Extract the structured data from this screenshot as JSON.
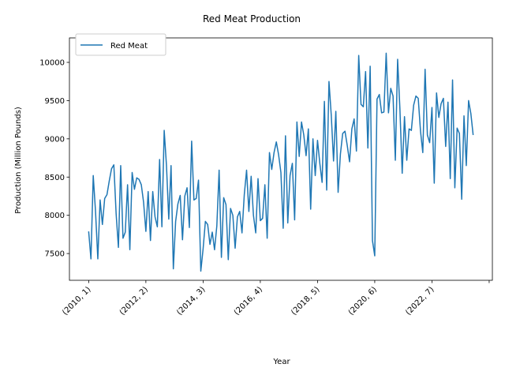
{
  "chart_data": {
    "type": "line",
    "title": "Red Meat Production",
    "xlabel": "Year",
    "ylabel": "Production (Million Pounds)",
    "x_start": "2010-01",
    "x_tick_labels": [
      "(2010, 1)",
      "(2012, 2)",
      "(2014, 3)",
      "(2016, 4)",
      "(2018, 5)",
      "(2020, 6)",
      "(2022, 7)",
      ""
    ],
    "x_tick_months": [
      "2010-01",
      "2012-02",
      "2014-03",
      "2016-04",
      "2018-05",
      "2020-06",
      "2022-07",
      "2024-08"
    ],
    "ylim": [
      7150,
      10320
    ],
    "y_ticks": [
      7500,
      8000,
      8500,
      9000,
      9500,
      10000
    ],
    "grid": false,
    "legend_position": "upper-left",
    "series": [
      {
        "name": "Red Meat",
        "color": "#1f77b4",
        "values": [
          7790,
          7430,
          8520,
          8050,
          7430,
          8200,
          7880,
          8220,
          8270,
          8450,
          8610,
          8660,
          8020,
          7580,
          8650,
          7700,
          7780,
          8400,
          7550,
          8560,
          8340,
          8490,
          8470,
          8400,
          8170,
          7790,
          8310,
          7670,
          8310,
          7980,
          7850,
          8730,
          7850,
          9110,
          8650,
          7950,
          8650,
          7300,
          7920,
          8150,
          8260,
          7680,
          8250,
          8360,
          7840,
          8970,
          8200,
          8220,
          8460,
          7270,
          7560,
          7920,
          7880,
          7620,
          7780,
          7550,
          7860,
          8590,
          7450,
          8230,
          8140,
          7420,
          8090,
          8000,
          7570,
          7980,
          8050,
          7770,
          8270,
          8590,
          8050,
          8510,
          8000,
          7770,
          8480,
          7930,
          7960,
          8400,
          7700,
          8820,
          8600,
          8820,
          8960,
          8790,
          8560,
          7830,
          9040,
          7900,
          8520,
          8680,
          7940,
          9220,
          8770,
          9220,
          9050,
          8780,
          9130,
          8080,
          9000,
          8520,
          8980,
          8680,
          8430,
          9490,
          8330,
          9750,
          9310,
          8710,
          9360,
          8300,
          8800,
          9070,
          9100,
          8910,
          8700,
          9130,
          9260,
          8840,
          10090,
          9450,
          9420,
          9880,
          8880,
          9950,
          7670,
          7470,
          9520,
          9580,
          9340,
          9350,
          10120,
          9340,
          9660,
          9560,
          8720,
          10040,
          9390,
          8550,
          9290,
          8720,
          9130,
          9110,
          9440,
          9560,
          9530,
          9100,
          8820,
          9910,
          9050,
          8950,
          9410,
          8420,
          9600,
          9280,
          9460,
          9530,
          8900,
          9480,
          8480,
          9770,
          8360,
          9140,
          9070,
          8210,
          9300,
          8650,
          9500,
          9330,
          9050
        ]
      }
    ]
  }
}
